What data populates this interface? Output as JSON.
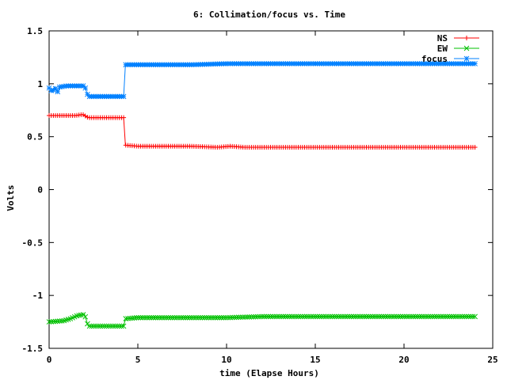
{
  "chart_data": {
    "type": "line",
    "title": "6: Collimation/focus vs. Time",
    "xlabel": "time (Elapse Hours)",
    "ylabel": "Volts",
    "xlim": [
      0,
      25
    ],
    "ylim": [
      -1.5,
      1.5
    ],
    "xticks": [
      0,
      5,
      10,
      15,
      20,
      25
    ],
    "xtick_labels": [
      "0",
      "5",
      "10",
      "15",
      "20",
      "25"
    ],
    "yticks": [
      -1.5,
      -1,
      -0.5,
      0,
      0.5,
      1,
      1.5
    ],
    "ytick_labels": [
      "-1.5",
      "-1",
      "-0.5",
      "0",
      "0.5",
      "1",
      "1.5"
    ],
    "grid": false,
    "legend_position": "top-right",
    "series": [
      {
        "name": "NS",
        "color": "#ff0000",
        "marker": "plus",
        "points": [
          [
            0.0,
            0.7
          ],
          [
            1.0,
            0.7
          ],
          [
            1.5,
            0.7
          ],
          [
            1.9,
            0.71
          ],
          [
            2.0,
            0.7
          ],
          [
            2.2,
            0.68
          ],
          [
            3.0,
            0.68
          ],
          [
            4.2,
            0.68
          ],
          [
            4.3,
            0.42
          ],
          [
            5.0,
            0.41
          ],
          [
            8.0,
            0.41
          ],
          [
            9.5,
            0.4
          ],
          [
            10.2,
            0.41
          ],
          [
            11.0,
            0.4
          ],
          [
            15.0,
            0.4
          ],
          [
            20.0,
            0.4
          ],
          [
            24.0,
            0.4
          ]
        ]
      },
      {
        "name": "EW",
        "color": "#00c000",
        "marker": "cross",
        "points": [
          [
            0.0,
            -1.25
          ],
          [
            0.8,
            -1.24
          ],
          [
            1.2,
            -1.22
          ],
          [
            1.6,
            -1.19
          ],
          [
            2.0,
            -1.18
          ],
          [
            2.2,
            -1.29
          ],
          [
            3.0,
            -1.29
          ],
          [
            4.2,
            -1.29
          ],
          [
            4.3,
            -1.22
          ],
          [
            5.0,
            -1.21
          ],
          [
            10.0,
            -1.21
          ],
          [
            12.0,
            -1.2
          ],
          [
            18.0,
            -1.2
          ],
          [
            24.0,
            -1.2
          ]
        ]
      },
      {
        "name": "focus",
        "color": "#0080ff",
        "marker": "star",
        "points": [
          [
            0.0,
            0.96
          ],
          [
            0.2,
            0.92
          ],
          [
            0.3,
            0.97
          ],
          [
            0.5,
            0.92
          ],
          [
            0.6,
            0.97
          ],
          [
            1.0,
            0.98
          ],
          [
            2.0,
            0.98
          ],
          [
            2.2,
            0.88
          ],
          [
            3.0,
            0.88
          ],
          [
            4.2,
            0.88
          ],
          [
            4.3,
            1.18
          ],
          [
            8.0,
            1.18
          ],
          [
            10.0,
            1.19
          ],
          [
            12.0,
            1.19
          ],
          [
            20.0,
            1.19
          ],
          [
            24.0,
            1.19
          ]
        ]
      }
    ]
  }
}
